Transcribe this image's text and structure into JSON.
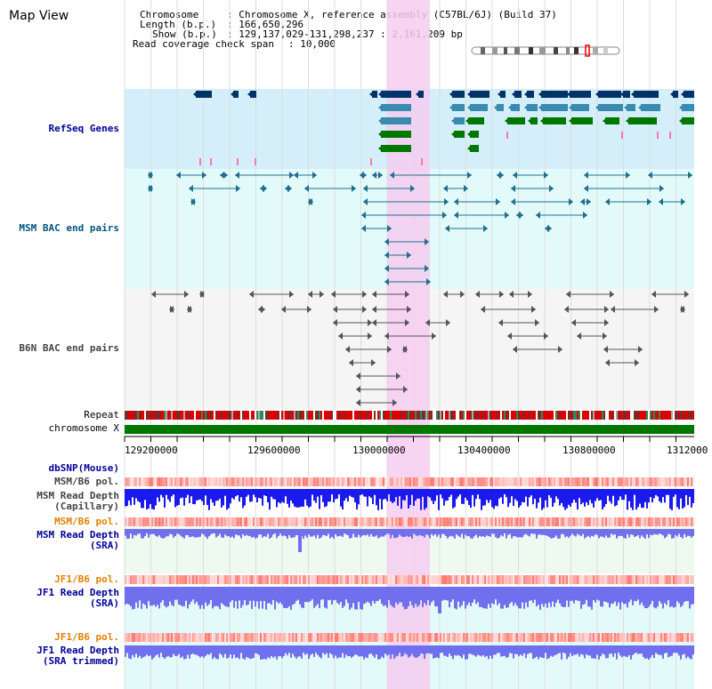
{
  "page": {
    "title": "Map View"
  },
  "header": {
    "chromosome_label": "Chromosome",
    "chromosome_value": ": Chromosome X, reference assembly (C57BL/6J) (Build 37)",
    "length_label": "Length (b.p.)",
    "length_value": ": 166,650,296",
    "show_label": "Show (b.p.)",
    "show_value": ": 129,137,029-131,298,237 : 2,161,209 bp",
    "coverage_label": "Read coverage check span",
    "coverage_value": ": 10,000"
  },
  "tracks": {
    "refseq": "RefSeq Genes",
    "msm_bac": "MSM BAC end pairs",
    "b6n_bac": "B6N BAC end pairs",
    "repeat": "Repeat",
    "chromosome": "chromosome X",
    "dbsnp": "dbSNP(Mouse)",
    "msm_b6_pol": "MSM/B6 pol.",
    "msm_depth_cap_1": "MSM Read Depth",
    "msm_depth_cap_2": "(Capillary)",
    "msm_b6_pol2": "MSM/B6 pol.",
    "msm_depth_sra_1": "MSM Read Depth",
    "msm_depth_sra_2": "(SRA)",
    "jf1_b6_pol": "JF1/B6 pol.",
    "jf1_depth_1": "JF1 Read Depth",
    "jf1_depth_2": "(SRA)",
    "jf1_b6_pol2": "JF1/B6 pol.",
    "jf1_trim_1": "JF1 Read Depth",
    "jf1_trim_2": "(SRA trimmed)"
  },
  "axis": {
    "ticks": [
      "129200000",
      "129600000",
      "130000000",
      "130400000",
      "130800000",
      "1312000"
    ]
  },
  "colors": {
    "highlight": "#f5ccf0",
    "refseq_bg": "#d4eefa",
    "bac_bg": "#e2fbfa",
    "b6n_bg": "#f3f3f3",
    "gene_navy": "#003366",
    "gene_blue": "#3a8bb0",
    "gene_green": "#007700",
    "pink": "#ff77aa",
    "bac_teal": "#1f6f8f",
    "bac_grey": "#555555",
    "chrom_green": "#007700",
    "depth_blue": "#1a1aee",
    "depth_light": "#7070ee"
  }
}
